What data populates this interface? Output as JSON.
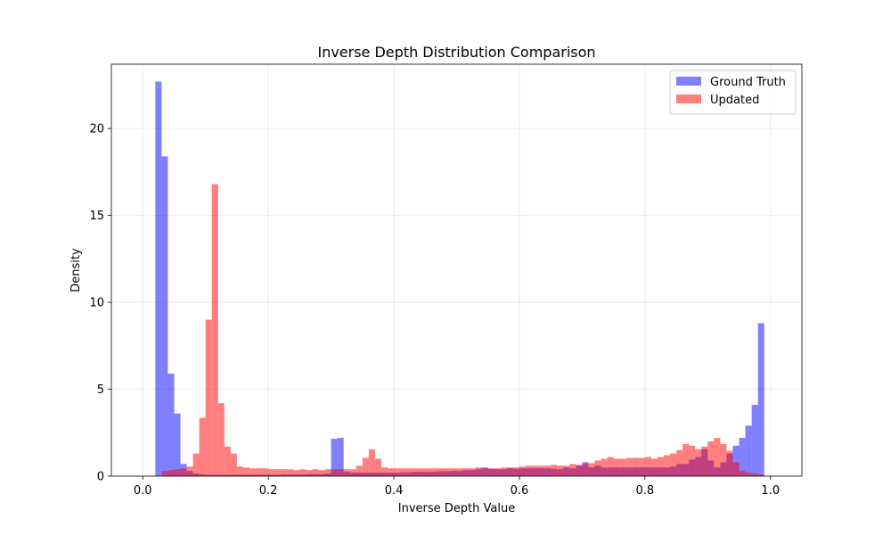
{
  "chart_data": {
    "type": "bar",
    "title": "Inverse Depth Distribution Comparison",
    "xlabel": "Inverse Depth Value",
    "ylabel": "Density",
    "xlim": [
      -0.05,
      1.05
    ],
    "ylim": [
      0,
      23.7
    ],
    "xticks": [
      0.0,
      0.2,
      0.4,
      0.6,
      0.8,
      1.0
    ],
    "xtick_labels": [
      "0.0",
      "0.2",
      "0.4",
      "0.6",
      "0.8",
      "1.0"
    ],
    "yticks": [
      0,
      5,
      10,
      15,
      20
    ],
    "ytick_labels": [
      "0",
      "5",
      "10",
      "15",
      "20"
    ],
    "grid": true,
    "legend_position": "top-right",
    "bin_edges": {
      "start": 0.0,
      "width": 0.01,
      "count": 100
    },
    "series": [
      {
        "name": "Ground Truth",
        "color": "#0000ff",
        "alpha": 0.5,
        "values": [
          0,
          0,
          22.7,
          18.4,
          5.9,
          3.6,
          0.7,
          0.3,
          0.15,
          0.1,
          0.08,
          0.08,
          0.08,
          0.08,
          0.08,
          0.08,
          0.08,
          0.08,
          0.08,
          0.08,
          0.08,
          0.08,
          0.1,
          0.1,
          0.1,
          0.1,
          0.12,
          0.12,
          0.12,
          0.15,
          2.15,
          2.2,
          0.25,
          0.2,
          0.2,
          0.2,
          0.2,
          0.2,
          0.2,
          0.2,
          0.2,
          0.22,
          0.22,
          0.25,
          0.25,
          0.25,
          0.25,
          0.28,
          0.28,
          0.3,
          0.3,
          0.35,
          0.35,
          0.4,
          0.5,
          0.42,
          0.4,
          0.4,
          0.45,
          0.42,
          0.45,
          0.45,
          0.45,
          0.45,
          0.45,
          0.42,
          0.4,
          0.5,
          0.45,
          0.6,
          0.8,
          0.5,
          0.6,
          0.5,
          0.5,
          0.5,
          0.5,
          0.5,
          0.5,
          0.5,
          0.5,
          0.5,
          0.5,
          0.5,
          0.55,
          0.7,
          0.7,
          0.95,
          1.1,
          1.55,
          0.9,
          0.5,
          0.8,
          1.3,
          1.75,
          2.2,
          2.9,
          4.1,
          8.8,
          0
        ]
      },
      {
        "name": "Updated",
        "color": "#ff0000",
        "alpha": 0.5,
        "values": [
          0,
          0,
          0,
          0.3,
          0.35,
          0.4,
          0.45,
          0.55,
          1.3,
          3.35,
          9.0,
          16.8,
          4.2,
          1.7,
          1.3,
          0.55,
          0.5,
          0.45,
          0.45,
          0.45,
          0.4,
          0.4,
          0.4,
          0.4,
          0.35,
          0.4,
          0.35,
          0.4,
          0.35,
          0.4,
          0.4,
          0.4,
          0.4,
          0.4,
          0.6,
          1.05,
          1.55,
          1.0,
          0.5,
          0.45,
          0.45,
          0.45,
          0.45,
          0.45,
          0.45,
          0.45,
          0.45,
          0.45,
          0.45,
          0.45,
          0.45,
          0.45,
          0.45,
          0.5,
          0.45,
          0.45,
          0.45,
          0.5,
          0.5,
          0.5,
          0.55,
          0.6,
          0.6,
          0.6,
          0.6,
          0.65,
          0.6,
          0.6,
          0.7,
          0.65,
          0.7,
          0.75,
          0.9,
          1.0,
          1.1,
          1.0,
          1.0,
          1.05,
          1.05,
          1.05,
          1.1,
          1.0,
          1.1,
          1.2,
          1.3,
          1.5,
          1.85,
          1.75,
          1.55,
          1.7,
          2.0,
          2.2,
          1.85,
          1.45,
          0.8,
          0.3,
          0.2,
          0.15,
          0.1,
          0
        ]
      }
    ]
  }
}
